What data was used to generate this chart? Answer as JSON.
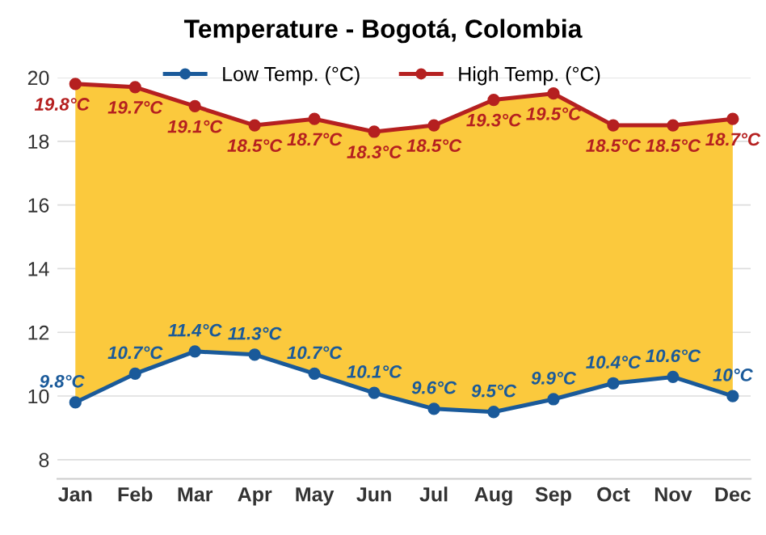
{
  "chart_data": {
    "type": "line",
    "title": "Temperature - Bogotá, Colombia",
    "categories": [
      "Jan",
      "Feb",
      "Mar",
      "Apr",
      "May",
      "Jun",
      "Jul",
      "Aug",
      "Sep",
      "Oct",
      "Nov",
      "Dec"
    ],
    "series": [
      {
        "name": "Low Temp. (°C)",
        "color": "#1a5a9a",
        "values": [
          9.8,
          10.7,
          11.4,
          11.3,
          10.7,
          10.1,
          9.6,
          9.5,
          9.9,
          10.4,
          10.6,
          10
        ],
        "value_labels": [
          "9.8°C",
          "10.7°C",
          "11.4°C",
          "11.3°C",
          "10.7°C",
          "10.1°C",
          "9.6°C",
          "9.5°C",
          "9.9°C",
          "10.4°C",
          "10.6°C",
          "10°C"
        ]
      },
      {
        "name": "High Temp. (°C)",
        "color": "#b52020",
        "type": "area",
        "values": [
          19.8,
          19.7,
          19.1,
          18.5,
          18.7,
          18.3,
          18.5,
          19.3,
          19.5,
          18.5,
          18.5,
          18.7
        ],
        "value_labels": [
          "19.8°C",
          "19.7°C",
          "19.1°C",
          "18.5°C",
          "18.7°C",
          "18.3°C",
          "18.5°C",
          "19.3°C",
          "19.5°C",
          "18.5°C",
          "18.5°C",
          "18.7°C"
        ]
      }
    ],
    "ylim": [
      7.4,
      20
    ],
    "yticks": [
      8,
      10,
      12,
      14,
      16,
      18,
      20
    ],
    "grid": "y",
    "legend": "top",
    "marker": "circle",
    "line_style": "solid"
  }
}
